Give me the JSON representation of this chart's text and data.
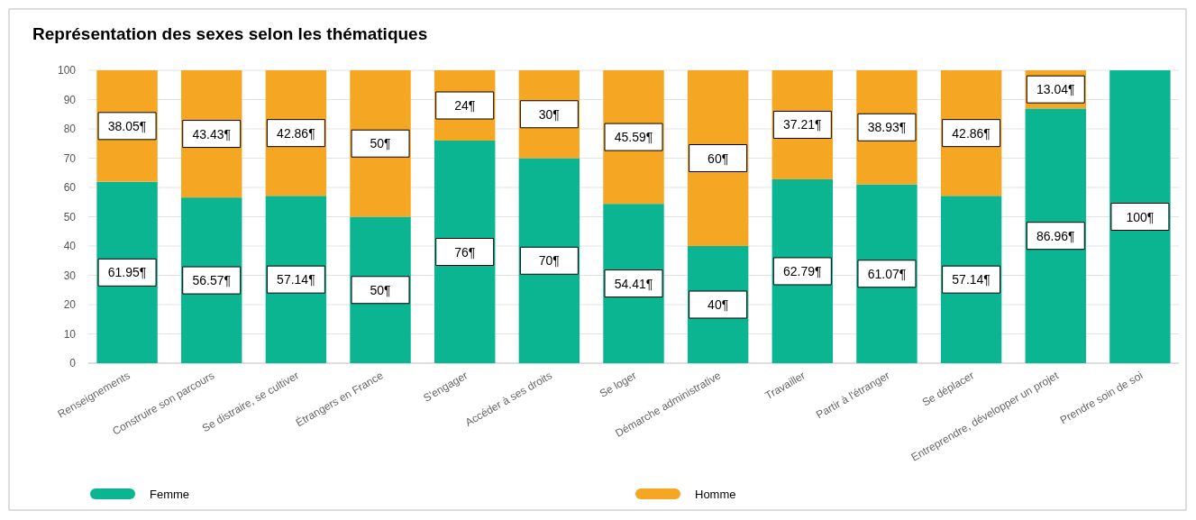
{
  "chart_data": {
    "type": "bar",
    "title": "Représentation des sexes selon les thématiques",
    "stacked": true,
    "categories": [
      "Renseignements",
      "Construire son parcours",
      "Se distraire, se cultiver",
      "Étrangers en France",
      "S'engager",
      "Accéder à ses droits",
      "Se loger",
      "Démarche administrative",
      "Travailler",
      "Partir à l'étranger",
      "Se déplacer",
      "Entreprendre, développer un projet",
      "Prendre soin de soi"
    ],
    "series": [
      {
        "name": "Femme",
        "color": "#0bb592",
        "values": [
          61.95,
          56.57,
          57.14,
          50,
          76,
          70,
          54.41,
          40,
          62.79,
          61.07,
          57.14,
          86.96,
          100
        ],
        "value_labels": [
          "61.95¶",
          "56.57¶",
          "57.14¶",
          "50¶",
          "76¶",
          "70¶",
          "54.41¶",
          "40¶",
          "62.79¶",
          "61.07¶",
          "57.14¶",
          "86.96¶",
          "100¶"
        ]
      },
      {
        "name": "Homme",
        "color": "#f5a623",
        "values": [
          38.05,
          43.43,
          42.86,
          50,
          24,
          30,
          45.59,
          60,
          37.21,
          38.93,
          42.86,
          13.04,
          0
        ],
        "value_labels": [
          "38.05¶",
          "43.43¶",
          "42.86¶",
          "50¶",
          "24¶",
          "30¶",
          "45.59¶",
          "60¶",
          "37.21¶",
          "38.93¶",
          "42.86¶",
          "13.04¶",
          null
        ]
      }
    ],
    "ylim": [
      0,
      100
    ],
    "yticks": [
      0,
      10,
      20,
      30,
      40,
      50,
      60,
      70,
      80,
      90,
      100
    ],
    "grid": "y",
    "legend": "bottom"
  }
}
